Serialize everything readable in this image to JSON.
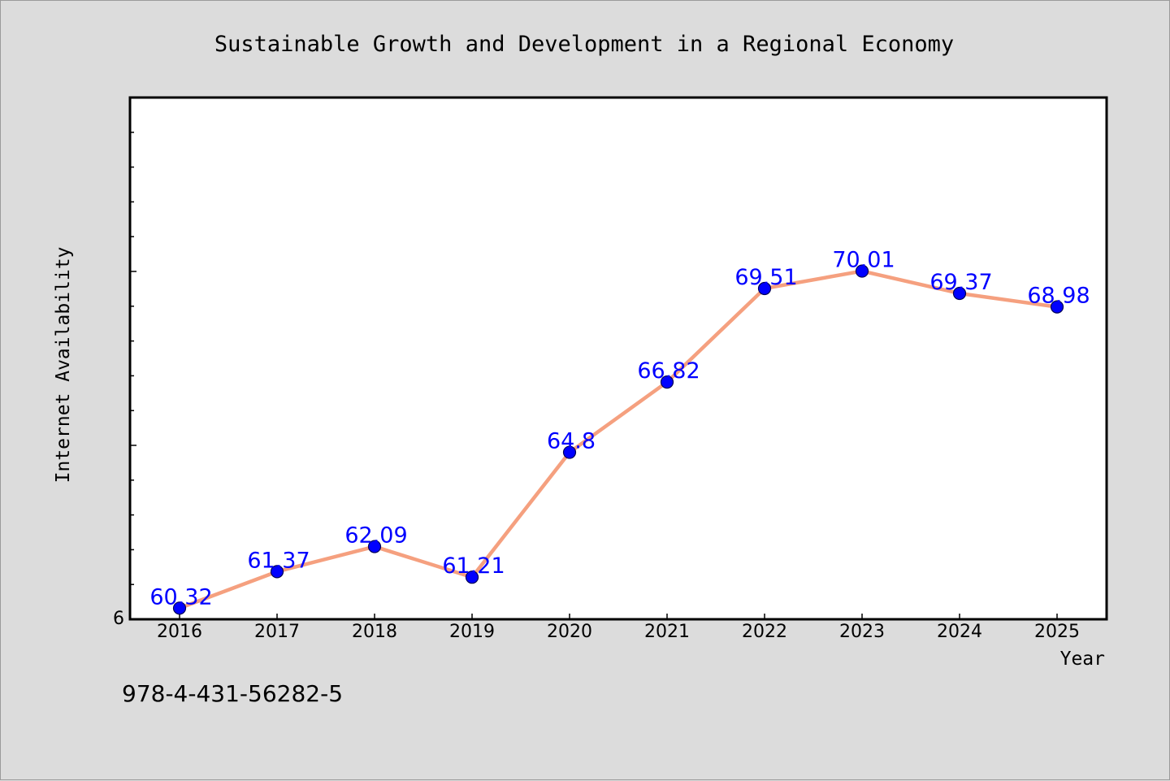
{
  "colors": {
    "background": "#dcdcdc",
    "plot_background": "#ffffff",
    "line": "#f5a07f",
    "marker": "#0000ff",
    "data_label": "#0000ff"
  },
  "footer_text": "978-4-431-56282-5",
  "chart_data": {
    "type": "line",
    "title": "Sustainable Growth and Development in a Regional Economy",
    "xlabel": "Year",
    "ylabel": "Internet Availability",
    "categories": [
      "2016",
      "2017",
      "2018",
      "2019",
      "2020",
      "2021",
      "2022",
      "2023",
      "2024",
      "2025"
    ],
    "series": [
      {
        "values": [
          60.32,
          61.37,
          62.09,
          61.21,
          64.8,
          66.82,
          69.51,
          70.01,
          69.37,
          68.98
        ],
        "labels": [
          "60.32",
          "61.37",
          "62.09",
          "61.21",
          "64.8",
          "66.82",
          "69.51",
          "70.01",
          "69.37",
          "68.98"
        ]
      }
    ],
    "y_tick_labels": [
      "6"
    ],
    "ylim": [
      60,
      75
    ],
    "grid": false,
    "legend": "none"
  }
}
